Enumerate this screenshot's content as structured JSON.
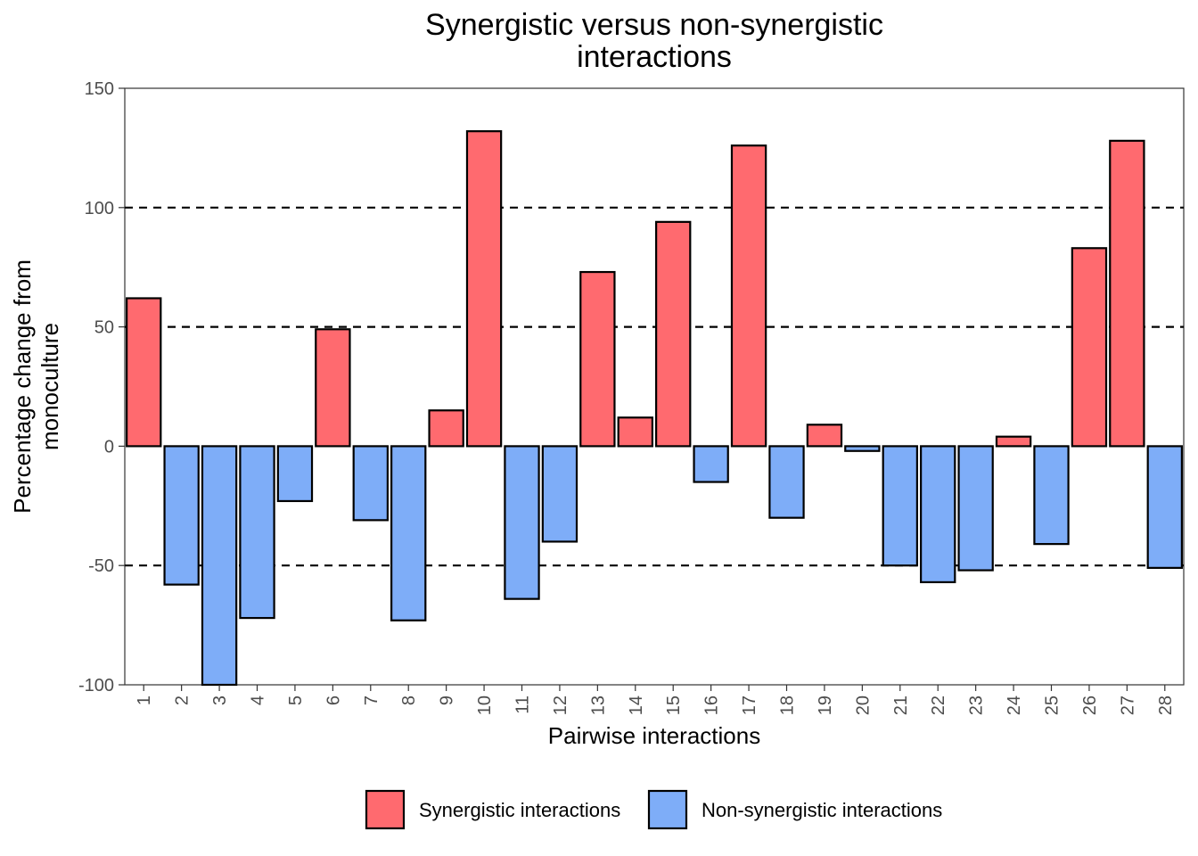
{
  "chart_data": {
    "type": "bar",
    "title_lines": [
      "Synergistic versus non-synergistic",
      "interactions"
    ],
    "xlabel": "Pairwise interactions",
    "ylabel_lines": [
      "Percentage change from",
      "monoculture"
    ],
    "ylim": [
      -100,
      150
    ],
    "yticks": [
      -100,
      -50,
      0,
      50,
      100,
      150
    ],
    "reference_lines": [
      -50,
      50,
      100
    ],
    "grid": false,
    "legend_position": "bottom",
    "categories": [
      "1",
      "2",
      "3",
      "4",
      "5",
      "6",
      "7",
      "8",
      "9",
      "10",
      "11",
      "12",
      "13",
      "14",
      "15",
      "16",
      "17",
      "18",
      "19",
      "20",
      "21",
      "22",
      "23",
      "24",
      "25",
      "26",
      "27",
      "28"
    ],
    "values": [
      62,
      -58,
      -100,
      -72,
      -23,
      49,
      -31,
      -73,
      15,
      132,
      -64,
      -40,
      73,
      12,
      94,
      -15,
      126,
      -30,
      9,
      -2,
      -50,
      -57,
      -52,
      4,
      -41,
      83,
      128,
      -51
    ],
    "groups": [
      "syn",
      "non",
      "non",
      "non",
      "non",
      "syn",
      "non",
      "non",
      "syn",
      "syn",
      "non",
      "non",
      "syn",
      "syn",
      "syn",
      "non",
      "syn",
      "non",
      "syn",
      "non",
      "non",
      "non",
      "non",
      "syn",
      "non",
      "syn",
      "syn",
      "non"
    ],
    "series": [
      {
        "key": "syn",
        "name": "Synergistic interactions",
        "color": "#FF6A6F"
      },
      {
        "key": "non",
        "name": "Non-synergistic interactions",
        "color": "#7EADF8"
      }
    ]
  }
}
